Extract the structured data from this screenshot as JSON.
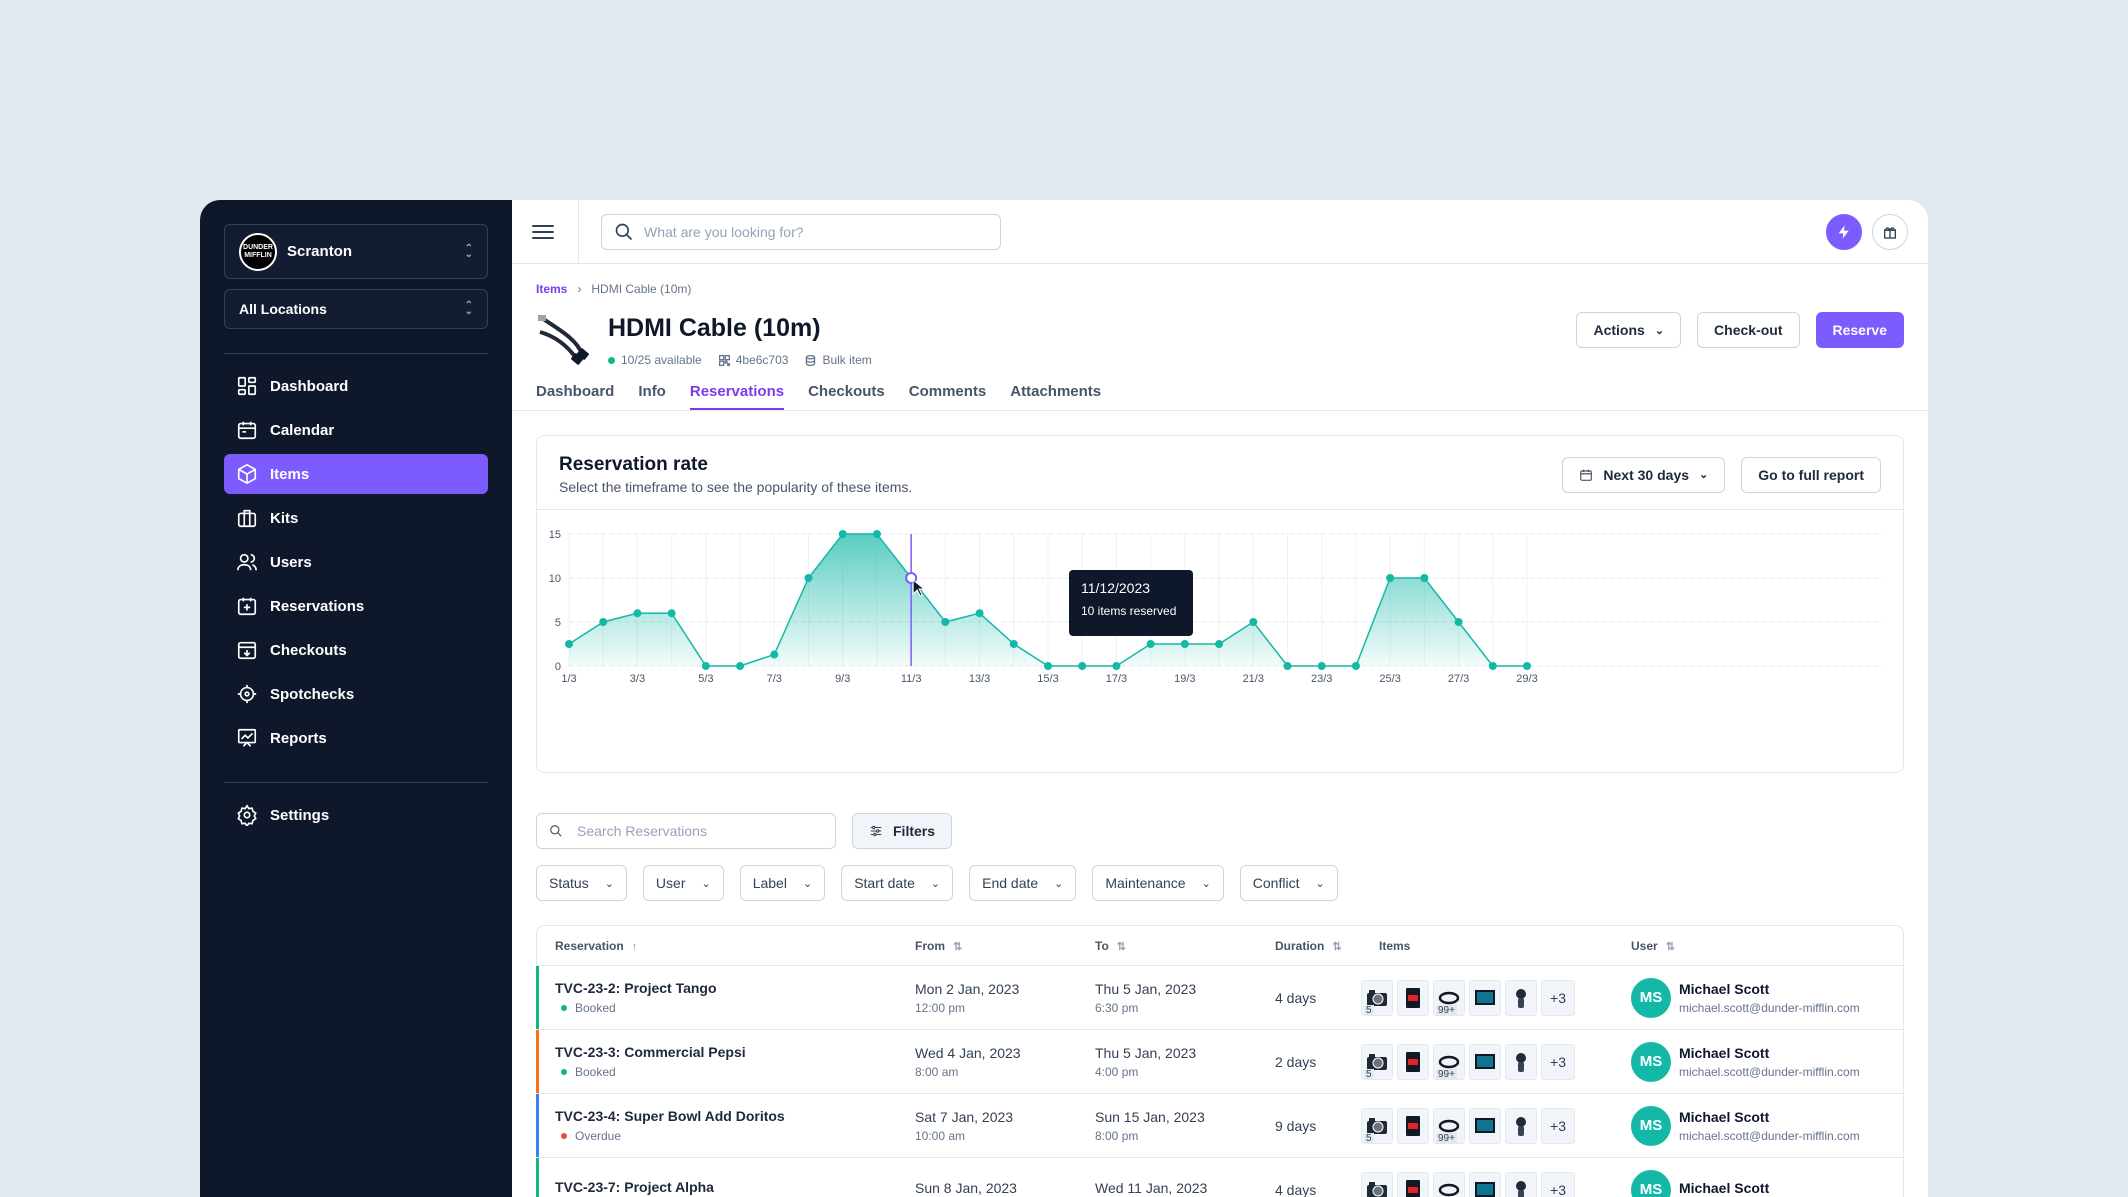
{
  "sidebar": {
    "org_logo": "DUNDER MIFFLIN",
    "org_name": "Scranton",
    "location": "All Locations",
    "items": [
      {
        "label": "Dashboard"
      },
      {
        "label": "Calendar"
      },
      {
        "label": "Items"
      },
      {
        "label": "Kits"
      },
      {
        "label": "Users"
      },
      {
        "label": "Reservations"
      },
      {
        "label": "Checkouts"
      },
      {
        "label": "Spotchecks"
      },
      {
        "label": "Reports"
      }
    ],
    "settings": "Settings",
    "active": "Items"
  },
  "topbar": {
    "search_placeholder": "What are you looking for?"
  },
  "breadcrumb": {
    "root": "Items",
    "current": "HDMI Cable (10m)"
  },
  "item": {
    "title": "HDMI Cable (10m)",
    "availability": "10/25 available",
    "code": "4be6c703",
    "type": "Bulk item"
  },
  "header_buttons": {
    "actions": "Actions",
    "checkout": "Check-out",
    "reserve": "Reserve"
  },
  "tabs": [
    {
      "label": "Dashboard"
    },
    {
      "label": "Info"
    },
    {
      "label": "Reservations"
    },
    {
      "label": "Checkouts"
    },
    {
      "label": "Comments"
    },
    {
      "label": "Attachments"
    }
  ],
  "active_tab": "Reservations",
  "card": {
    "title": "Reservation rate",
    "subtitle": "Select the timeframe to see the popularity of these items.",
    "timeframe": "Next 30 days",
    "full_report": "Go to full report"
  },
  "chart_data": {
    "type": "area",
    "x_labels": [
      "1/3",
      "3/3",
      "5/3",
      "7/3",
      "9/3",
      "11/3",
      "13/3",
      "15/3",
      "17/3",
      "19/3",
      "21/3",
      "23/3",
      "25/3",
      "27/3",
      "29/3"
    ],
    "y_ticks": [
      0,
      5,
      10,
      15
    ],
    "ylim": [
      0,
      15
    ],
    "x": [
      1,
      2,
      3,
      4,
      5,
      6,
      7,
      8,
      9,
      10,
      11,
      12,
      13,
      14,
      15,
      16,
      17,
      18,
      19,
      20,
      21,
      22,
      23,
      24,
      25,
      26,
      27,
      28,
      29
    ],
    "values": [
      2.5,
      5,
      6,
      6,
      0,
      0,
      1.3,
      10,
      15,
      15,
      10,
      5,
      6,
      2.5,
      0,
      0,
      0,
      2.5,
      2.5,
      2.5,
      5,
      0,
      0,
      0,
      10,
      10,
      5,
      0,
      0
    ],
    "color": "#14b8a6",
    "highlight_index": 10,
    "tooltip_date": "11/12/2023",
    "tooltip_text": "10 items reserved"
  },
  "filters": {
    "search_placeholder": "Search Reservations",
    "filters_label": "Filters",
    "dropdowns": [
      {
        "label": "Status"
      },
      {
        "label": "User"
      },
      {
        "label": "Label"
      },
      {
        "label": "Start date"
      },
      {
        "label": "End date"
      },
      {
        "label": "Maintenance"
      },
      {
        "label": "Conflict"
      }
    ]
  },
  "table": {
    "headers": {
      "reservation": "Reservation",
      "from": "From",
      "to": "To",
      "duration": "Duration",
      "items": "Items",
      "user": "User"
    },
    "thumb_badges": [
      "5",
      "99+"
    ],
    "more_label": "+3",
    "rows": [
      {
        "name": "TVC-23-2: Project Tango",
        "status": "Booked",
        "status_color": "#10b981",
        "bar_color": "#10b981",
        "from_date": "Mon 2 Jan, 2023",
        "from_time": "12:00 pm",
        "to_date": "Thu 5 Jan, 2023",
        "to_time": "6:30 pm",
        "duration": "4 days",
        "user_initials": "MS",
        "user_name": "Michael Scott",
        "user_email": "michael.scott@dunder-mifflin.com"
      },
      {
        "name": "TVC-23-3: Commercial Pepsi",
        "status": "Booked",
        "status_color": "#10b981",
        "bar_color": "#f97316",
        "from_date": "Wed 4 Jan, 2023",
        "from_time": "8:00 am",
        "to_date": "Thu 5 Jan, 2023",
        "to_time": "4:00 pm",
        "duration": "2 days",
        "user_initials": "MS",
        "user_name": "Michael Scott",
        "user_email": "michael.scott@dunder-mifflin.com"
      },
      {
        "name": "TVC-23-4: Super Bowl Add Doritos",
        "status": "Overdue",
        "status_color": "#ef4444",
        "bar_color": "#3b82f6",
        "from_date": "Sat 7 Jan, 2023",
        "from_time": "10:00 am",
        "to_date": "Sun 15 Jan, 2023",
        "to_time": "8:00 pm",
        "duration": "9 days",
        "user_initials": "MS",
        "user_name": "Michael Scott",
        "user_email": "michael.scott@dunder-mifflin.com"
      },
      {
        "name": "TVC-23-7: Project Alpha",
        "status": "",
        "status_color": "#10b981",
        "bar_color": "#10b981",
        "from_date": "Sun 8 Jan, 2023",
        "from_time": "",
        "to_date": "Wed 11 Jan, 2023",
        "to_time": "",
        "duration": "4 days",
        "user_initials": "MS",
        "user_name": "Michael Scott",
        "user_email": ""
      }
    ]
  }
}
